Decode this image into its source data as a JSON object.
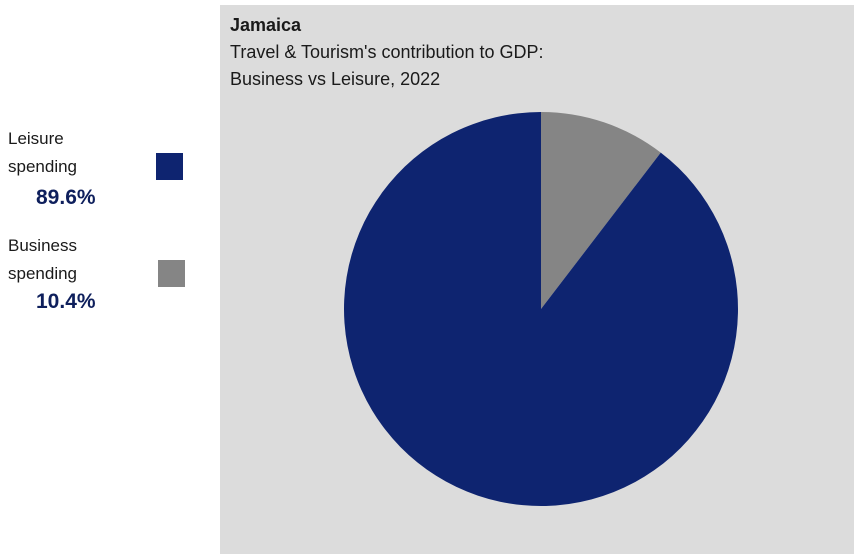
{
  "chart_data": {
    "type": "pie",
    "title": "Jamaica",
    "subtitle_lines": [
      "Travel & Tourism's contribution to GDP:",
      "Business vs Leisure, 2022"
    ],
    "slices": [
      {
        "label_line1": "Leisure",
        "label_line2": "spending",
        "value": 89.6,
        "value_text": "89.6%",
        "color": "#0e2470"
      },
      {
        "label_line1": "Business",
        "label_line2": "spending",
        "value": 10.4,
        "value_text": "10.4%",
        "color": "#858585"
      }
    ],
    "start_angle_deg": 0,
    "direction": "counterclockwise-for-first-slice"
  },
  "colors": {
    "panel_background": "#dcdcdc",
    "value_text": "#0e1f5c"
  }
}
